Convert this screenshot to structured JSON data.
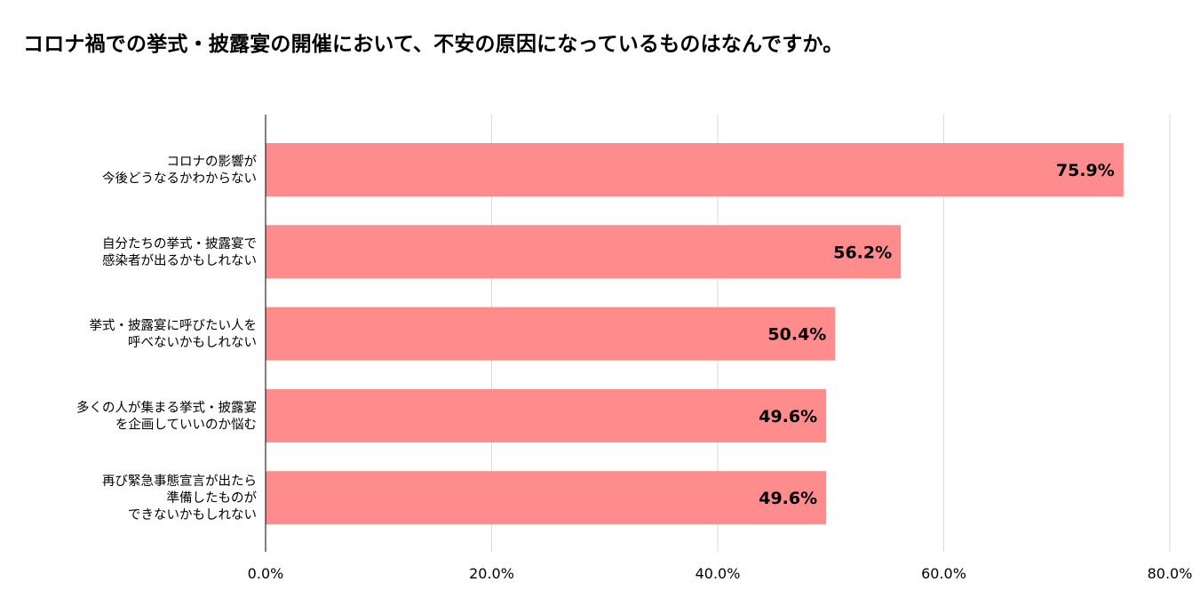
{
  "chart_data": {
    "type": "bar",
    "orientation": "horizontal",
    "title": "コロナ禍での挙式・披露宴の開催において、不安の原因になっているものはなんですか。",
    "categories": [
      [
        "コロナの影響が",
        "今後どうなるかわからない"
      ],
      [
        "自分たちの挙式・披露宴で",
        "感染者が出るかもしれない"
      ],
      [
        "挙式・披露宴に呼びたい人を",
        "呼べないかもしれない"
      ],
      [
        "多くの人が集まる挙式・披露宴",
        "を企画していいのか悩む"
      ],
      [
        "再び緊急事態宣言が出たら",
        "準備したものが",
        "できないかもしれない"
      ]
    ],
    "values": [
      75.9,
      56.2,
      50.4,
      49.6,
      49.6
    ],
    "value_labels": [
      "75.9%",
      "56.2%",
      "50.4%",
      "49.6%",
      "49.6%"
    ],
    "xlim": [
      0,
      80
    ],
    "x_ticks": [
      0,
      20,
      40,
      60,
      80
    ],
    "x_tick_labels": [
      "0.0%",
      "20.0%",
      "40.0%",
      "60.0%",
      "80.0%"
    ],
    "grid": "vertical",
    "legend": "none",
    "bar_color": "#ff8c8c",
    "grid_color": "#d9d9d9",
    "axis_color": "#000000"
  }
}
